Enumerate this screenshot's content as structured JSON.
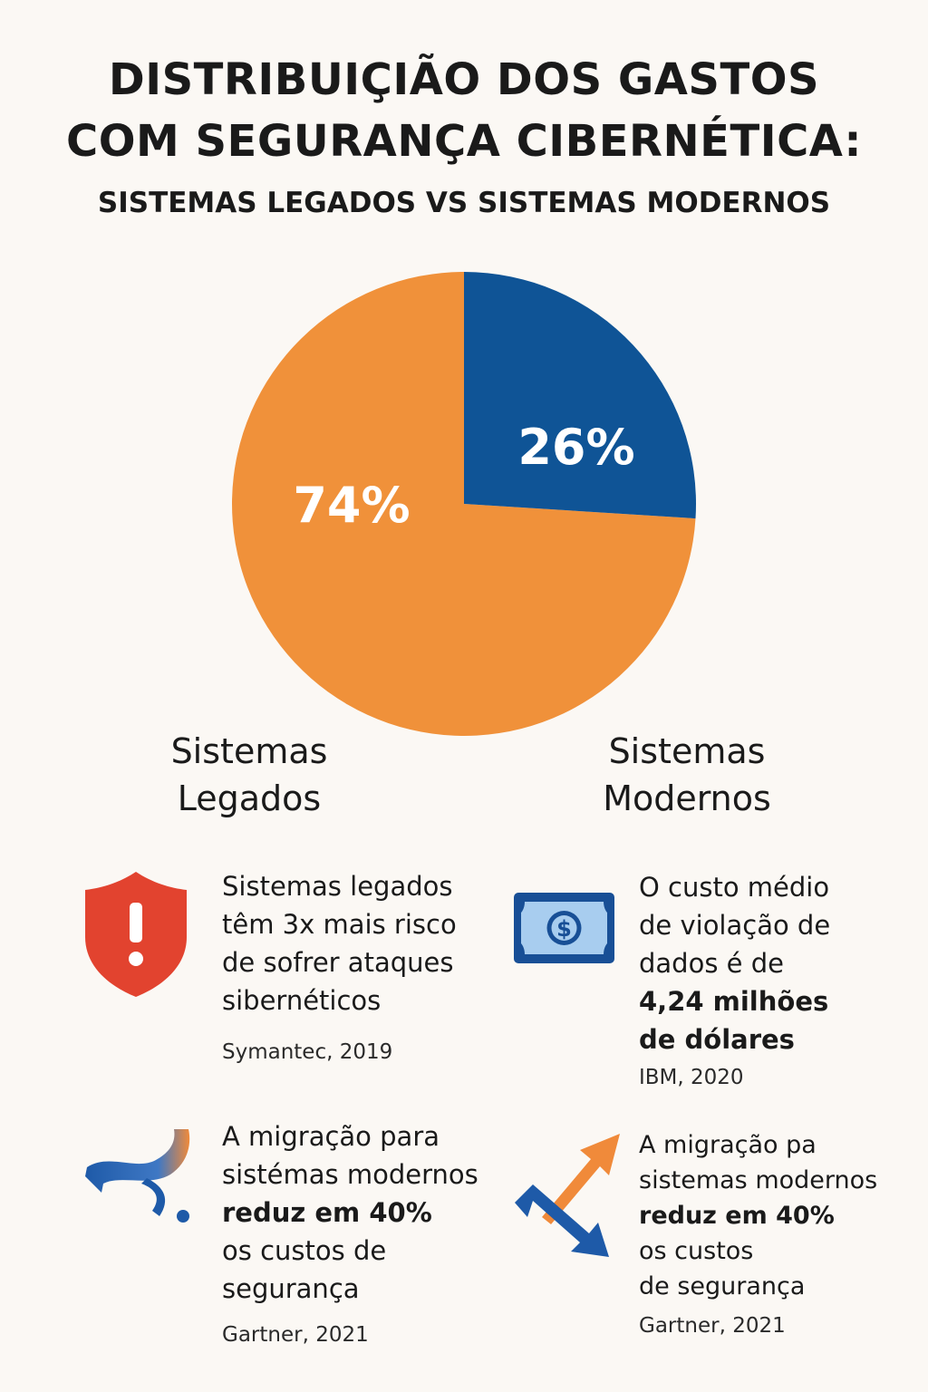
{
  "title_line1": "DISTRIBUIÇIÃO DOS GASTOS",
  "title_line2": "COM SEGURANÇA CIBERNÉTICA:",
  "subtitle": "SISTEMAS LEGADOS VS SISTEMAS MODERNOS",
  "chart_data": {
    "type": "pie",
    "categories": [
      "Sistemas Legados",
      "Sistemas Modernos"
    ],
    "values": [
      74,
      26
    ],
    "labels": [
      "74%",
      "26%"
    ],
    "colors": [
      "#f0913a",
      "#0f5496"
    ]
  },
  "category_labels": {
    "legacy_line1": "Sistemas",
    "legacy_line2": "Legados",
    "modern_line1": "Sistemas",
    "modern_line2": "Modernos"
  },
  "facts": {
    "risk": {
      "icon": "shield-alert-icon",
      "lines": [
        "Sistemas legados",
        "têm 3x mais risco",
        "de sofrer ataques",
        "sibernéticos"
      ],
      "source": "Symantec, 2019"
    },
    "cost": {
      "icon": "money-bill-icon",
      "lines": [
        "O custo médio",
        "de violação de",
        "dados é de"
      ],
      "bold_lines": [
        "4,24 milhões",
        "de dólares"
      ],
      "source": "IBM, 2020"
    },
    "migration_left": {
      "icon": "migration-arrow-icon",
      "lines_before": [
        "A migração para",
        "sistémas modernos"
      ],
      "bold": "reduz em 40%",
      "lines_after": [
        "os custos de",
        "segurança"
      ],
      "source": "Gartner, 2021"
    },
    "migration_right": {
      "icon": "up-down-arrows-icon",
      "lines_before": [
        "A migração pa",
        "sistemas modernos"
      ],
      "bold": "reduz em 40%",
      "lines_after": [
        "os custos",
        "de segurança"
      ],
      "source": "Gartner, 2021"
    }
  }
}
